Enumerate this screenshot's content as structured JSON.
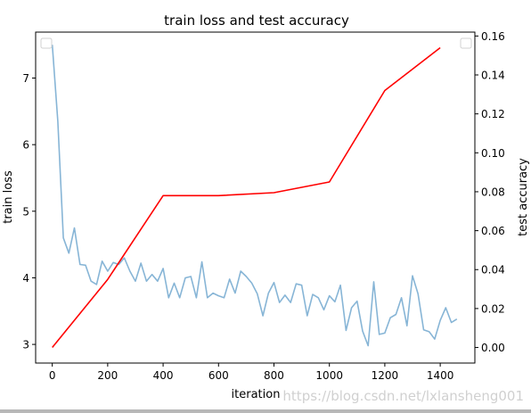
{
  "chart_data": {
    "type": "line",
    "title": "train loss and test accuracy",
    "xlabel": "iteration",
    "ylabel_left": "train loss",
    "ylabel_right": "test accuracy",
    "xlim": [
      -60,
      1525
    ],
    "ylim_left": [
      2.72,
      7.69
    ],
    "ylim_right": [
      -0.008,
      0.162
    ],
    "x_ticks": [
      0,
      200,
      400,
      600,
      800,
      1000,
      1200,
      1400
    ],
    "y_left_ticks": [
      3,
      4,
      5,
      6,
      7
    ],
    "y_right_ticks": [
      0.0,
      0.02,
      0.04,
      0.06,
      0.08,
      0.1,
      0.12,
      0.14,
      0.16
    ],
    "y_right_tick_labels": [
      "0.00",
      "0.02",
      "0.04",
      "0.06",
      "0.08",
      "0.10",
      "0.12",
      "0.14",
      "0.16"
    ],
    "grid": false,
    "legend": "empty legend boxes at top-left and top-right",
    "series": [
      {
        "axis": "left",
        "color": "#87b5d6",
        "x": [
          0,
          20,
          40,
          60,
          80,
          100,
          120,
          140,
          160,
          180,
          200,
          220,
          240,
          260,
          280,
          300,
          320,
          340,
          360,
          380,
          400,
          420,
          440,
          460,
          480,
          500,
          520,
          540,
          560,
          580,
          600,
          620,
          640,
          660,
          680,
          700,
          720,
          740,
          760,
          780,
          800,
          820,
          840,
          860,
          880,
          900,
          920,
          940,
          960,
          980,
          1000,
          1020,
          1040,
          1060,
          1080,
          1100,
          1120,
          1140,
          1160,
          1180,
          1200,
          1220,
          1240,
          1260,
          1280,
          1300,
          1320,
          1340,
          1360,
          1380,
          1400,
          1420,
          1440,
          1460
        ],
        "values": [
          7.5,
          6.35,
          4.6,
          4.37,
          4.75,
          4.2,
          4.19,
          3.95,
          3.9,
          4.25,
          4.1,
          4.23,
          4.2,
          4.3,
          4.1,
          3.95,
          4.22,
          3.95,
          4.05,
          3.95,
          4.14,
          3.7,
          3.92,
          3.7,
          4.0,
          4.02,
          3.7,
          4.24,
          3.7,
          3.77,
          3.73,
          3.7,
          3.98,
          3.77,
          4.1,
          4.02,
          3.92,
          3.76,
          3.43,
          3.77,
          3.93,
          3.63,
          3.74,
          3.63,
          3.91,
          3.89,
          3.43,
          3.75,
          3.7,
          3.52,
          3.73,
          3.64,
          3.89,
          3.21,
          3.55,
          3.65,
          3.2,
          2.98,
          3.94,
          3.15,
          3.17,
          3.4,
          3.45,
          3.7,
          3.28,
          4.03,
          3.76,
          3.22,
          3.19,
          3.08,
          3.36,
          3.55,
          3.33,
          3.38
        ]
      },
      {
        "axis": "right",
        "color": "#ff0000",
        "x": [
          0,
          200,
          400,
          600,
          800,
          1000,
          1200,
          1400
        ],
        "values": [
          0.0,
          0.035,
          0.078,
          0.078,
          0.0795,
          0.085,
          0.132,
          0.154
        ]
      }
    ]
  },
  "watermark": "https://blog.csdn.net/lxlansheng001"
}
